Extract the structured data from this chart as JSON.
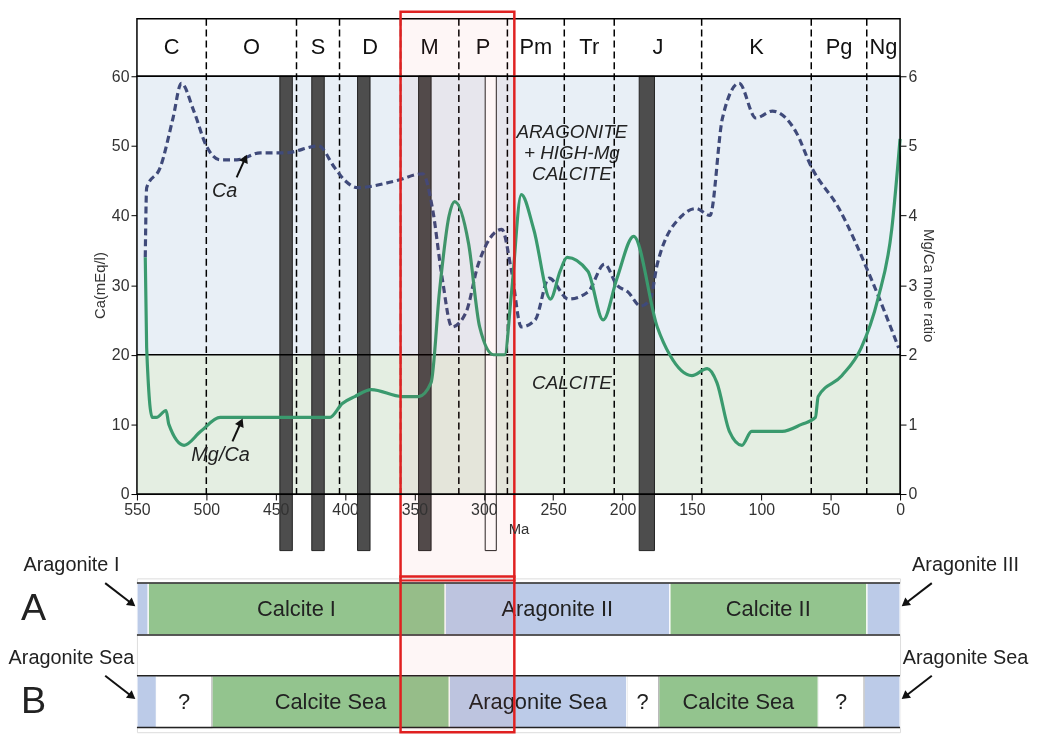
{
  "chart_data": [
    {
      "type": "line",
      "xlabel": "Ma",
      "ylabel": "Ca(mEq/l)",
      "y2label": "Mg/Ca mole ratio",
      "xlim": [
        550,
        0
      ],
      "xticks": [
        550,
        500,
        450,
        400,
        350,
        300,
        250,
        200,
        150,
        100,
        50,
        0
      ],
      "ylim": [
        0,
        60
      ],
      "yticks": [
        0,
        10,
        20,
        30,
        40,
        50,
        60
      ],
      "y2lim": [
        0,
        6
      ],
      "y2ticks": [
        0,
        1,
        2,
        3,
        4,
        5,
        6
      ],
      "grid": false,
      "marker": "none",
      "series": [
        {
          "color": "#3f4a7a",
          "line_style": "dashed",
          "x": [
            544,
            543,
            533,
            524,
            518,
            509,
            500,
            490,
            478,
            461,
            443,
            419,
            408,
            400,
            391,
            363,
            344,
            337,
            330,
            323,
            313,
            304,
            287,
            280,
            273,
            263,
            253,
            239,
            225,
            213,
            204,
            196,
            187,
            180,
            175,
            157,
            147,
            137,
            128,
            116,
            104,
            92,
            75,
            64,
            44,
            21,
            1
          ],
          "values": [
            34,
            44,
            47,
            54,
            59,
            55,
            50,
            48,
            48,
            49,
            49,
            50,
            47,
            45,
            44,
            45,
            46,
            41,
            31,
            24,
            26,
            33,
            38,
            32,
            24,
            25,
            31,
            28,
            29,
            33,
            30,
            29,
            27,
            28,
            33,
            40,
            41,
            40,
            54,
            59,
            54,
            55,
            52,
            47,
            41,
            31,
            21
          ]
        },
        {
          "color": "#3a9a6e",
          "line_style": "solid",
          "axis": "y2",
          "x": [
            544,
            543,
            539,
            536,
            529,
            527,
            516,
            504,
            490,
            466,
            443,
            426,
            411,
            402,
            393,
            381,
            359,
            347,
            338,
            332,
            325,
            321,
            311,
            303,
            293,
            285,
            280,
            273,
            264,
            252,
            245,
            240,
            225,
            214,
            204,
            192,
            175,
            166,
            150,
            139,
            132,
            123,
            114,
            107,
            85,
            71,
            61,
            59,
            42,
            28,
            16,
            6,
            0
          ],
          "values": [
            3.4,
            2.1,
            1.1,
            1.1,
            1.2,
            1.0,
            0.7,
            0.9,
            1.1,
            1.1,
            1.1,
            1.1,
            1.1,
            1.3,
            1.4,
            1.5,
            1.4,
            1.4,
            1.6,
            2.9,
            4.0,
            4.2,
            3.6,
            2.4,
            2.0,
            2.0,
            2.9,
            4.3,
            3.8,
            2.8,
            3.2,
            3.4,
            3.2,
            2.5,
            3.1,
            3.7,
            2.4,
            2.0,
            1.7,
            1.8,
            1.6,
            0.9,
            0.7,
            0.9,
            0.9,
            1.0,
            1.1,
            1.4,
            1.7,
            2.1,
            2.8,
            3.8,
            5.1
          ]
        }
      ],
      "ref_lines": [
        {
          "axis": "y",
          "value": 20,
          "color": "#000000",
          "line_style": "solid"
        },
        {
          "axis": "x",
          "value": 500,
          "color": "#000000",
          "line_style": "dashed"
        },
        {
          "axis": "x",
          "value": 435,
          "color": "#000000",
          "line_style": "dashed"
        },
        {
          "axis": "x",
          "value": 404,
          "color": "#000000",
          "line_style": "dashed"
        },
        {
          "axis": "x",
          "value": 360,
          "color": "#000000",
          "line_style": "dashed"
        },
        {
          "axis": "x",
          "value": 318,
          "color": "#000000",
          "line_style": "dashed"
        },
        {
          "axis": "x",
          "value": 283,
          "color": "#000000",
          "line_style": "dashed"
        },
        {
          "axis": "x",
          "value": 242,
          "color": "#000000",
          "line_style": "dashed"
        },
        {
          "axis": "x",
          "value": 206,
          "color": "#000000",
          "line_style": "dashed"
        },
        {
          "axis": "x",
          "value": 143,
          "color": "#000000",
          "line_style": "dashed"
        },
        {
          "axis": "x",
          "value": 64,
          "color": "#000000",
          "line_style": "dashed"
        },
        {
          "axis": "x",
          "value": 24,
          "color": "#000000",
          "line_style": "dashed"
        }
      ],
      "bands": [
        {
          "axis": "y2",
          "from": 2,
          "to": 6,
          "label": "ARAGONITE\n+ HIGH-Mg\nCALCITE",
          "color": "#e8eff6"
        },
        {
          "axis": "y2",
          "from": 0,
          "to": 2,
          "label": "CALCITE",
          "color": "#e4eee2"
        },
        {
          "axis": "x",
          "from": 447,
          "to": 438,
          "color": "#4d4d4d"
        },
        {
          "axis": "x",
          "from": 424,
          "to": 415,
          "color": "#4d4d4d"
        },
        {
          "axis": "x",
          "from": 391,
          "to": 382,
          "color": "#4d4d4d"
        },
        {
          "axis": "x",
          "from": 347,
          "to": 338,
          "color": "#4d4d4d"
        },
        {
          "axis": "x",
          "from": 299,
          "to": 291,
          "color": "#ffffff"
        },
        {
          "axis": "x",
          "from": 188,
          "to": 177,
          "color": "#4d4d4d"
        },
        {
          "axis": "x",
          "from": 360,
          "to": 278,
          "color": "#e02020"
        }
      ],
      "annotations": [
        {
          "text": "Ca",
          "x": 471,
          "y": 48.6
        },
        {
          "text": "Mg/Ca",
          "x": 474,
          "y": 10.7
        },
        "C",
        "O",
        "S",
        "D",
        "M",
        "P",
        "Pm",
        "Tr",
        "J",
        "K",
        "Pg",
        "Ng"
      ]
    },
    {
      "type": "bar",
      "orientation": "horizontal",
      "stacked": true,
      "categories": [
        "A",
        "B"
      ],
      "xlim": [
        550,
        0
      ],
      "tick_labels": "y",
      "series": [
        {
          "colors": [
            "#bccbe8",
            "#bccbe8"
          ],
          "values": [
            24,
            26
          ],
          "value_labels": [
            null,
            null
          ]
        },
        {
          "colors": [
            "#93c48e",
            "#ffffff"
          ],
          "values": [
            142,
            33
          ],
          "value_labels": [
            "Calcite II",
            "?"
          ]
        },
        {
          "colors": [
            "#bccbe8",
            "#93c48e"
          ],
          "values": [
            162,
            115
          ],
          "value_labels": [
            "Aragonite II",
            "Calcite Sea"
          ]
        },
        {
          "colors": [
            "#93c48e",
            "#ffffff"
          ],
          "values": [
            214,
            23
          ],
          "value_labels": [
            "Calcite I",
            "?"
          ]
        },
        {
          "colors": [
            "#bccbe8",
            "#bccbe8"
          ],
          "values": [
            8,
            128
          ],
          "value_labels": [
            null,
            "Aragonite Sea"
          ]
        },
        {
          "colors": [
            null,
            "#93c48e"
          ],
          "values": [
            null,
            171
          ],
          "value_labels": [
            null,
            "Calcite Sea"
          ]
        },
        {
          "colors": [
            null,
            "#ffffff"
          ],
          "values": [
            null,
            40
          ],
          "value_labels": [
            null,
            "?"
          ]
        },
        {
          "colors": [
            null,
            "#bccbe8"
          ],
          "values": [
            null,
            14
          ],
          "value_labels": [
            null,
            null
          ]
        }
      ],
      "bands": [
        {
          "axis": "x",
          "from": 360,
          "to": 278,
          "color": "#e02020"
        }
      ],
      "annotations": [
        {
          "text": "Aragonite I",
          "x": 550,
          "y": "A"
        },
        {
          "text": "Aragonite III",
          "x": 0,
          "y": "A"
        },
        {
          "text": "Aragonite Sea",
          "x": 550,
          "y": "B"
        },
        {
          "text": "Aragonite Sea",
          "x": 0,
          "y": "B"
        }
      ]
    }
  ]
}
